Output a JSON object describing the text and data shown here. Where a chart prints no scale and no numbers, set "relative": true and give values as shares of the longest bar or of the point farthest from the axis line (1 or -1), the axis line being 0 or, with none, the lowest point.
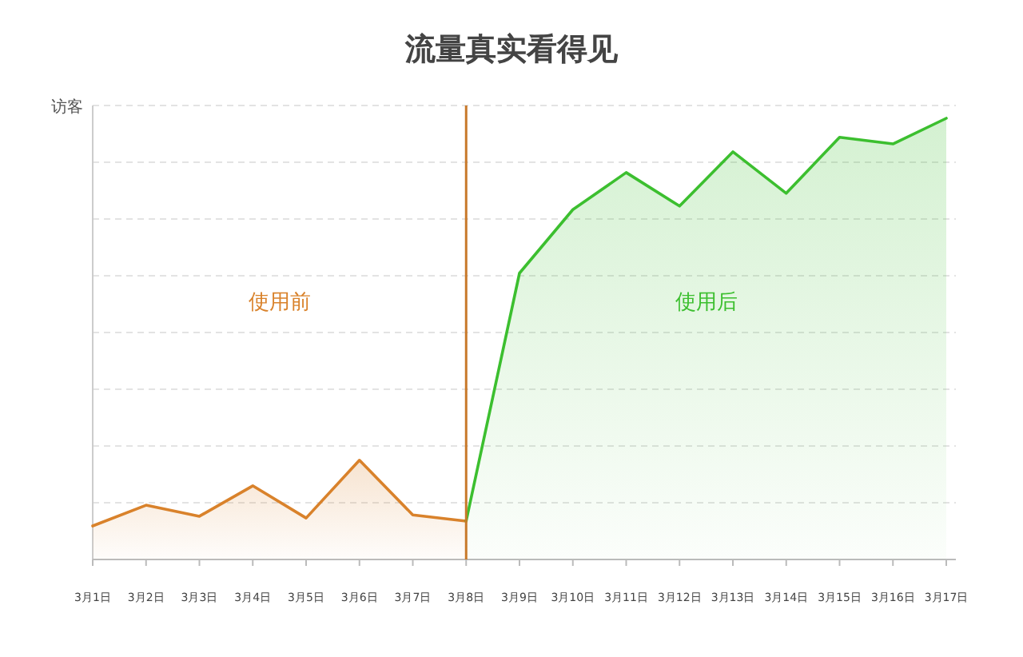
{
  "chart_data": {
    "type": "area",
    "title": "流量真实看得见",
    "ylabel": "访客",
    "relative": true,
    "grid": "y",
    "legend": false,
    "marker": "none",
    "line_style": "solid",
    "categories": [
      "3月1日",
      "3月2日",
      "3月3日",
      "3月4日",
      "3月5日",
      "3月6日",
      "3月7日",
      "3月8日",
      "3月9日",
      "3月10日",
      "3月11日",
      "3月12日",
      "3月13日",
      "3月14日",
      "3月15日",
      "3月16日",
      "3月17日"
    ],
    "series": [
      {
        "name": "使用前",
        "color": "#d9822b",
        "values": [
          0.076,
          0.123,
          0.098,
          0.167,
          0.094,
          0.225,
          0.101,
          0.087,
          null,
          null,
          null,
          null,
          null,
          null,
          null,
          null,
          null
        ]
      },
      {
        "name": "使用后",
        "color": "#3cbf2f",
        "values": [
          null,
          null,
          null,
          null,
          null,
          null,
          null,
          0.087,
          0.649,
          0.793,
          0.877,
          0.801,
          0.924,
          0.83,
          0.957,
          0.942,
          1
        ]
      }
    ],
    "ref_lines": [
      {
        "axis": "x",
        "value": "3月8日",
        "color": "#c8792a",
        "line_style": "solid"
      }
    ]
  }
}
